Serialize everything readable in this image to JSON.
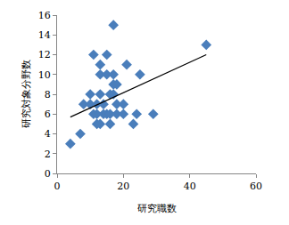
{
  "chart_data": {
    "type": "scatter",
    "x_label": "研究職数",
    "y_label": "研究対象分野数",
    "series": [
      {
        "type": "scatter",
        "color": "#4a7ebb",
        "marker": "diamond",
        "x": [
          4,
          7,
          8,
          10,
          10,
          11,
          11,
          12,
          12,
          12,
          13,
          13,
          13,
          13,
          14,
          14,
          15,
          15,
          15,
          16,
          16,
          16,
          17,
          17,
          17,
          17,
          18,
          18,
          18,
          20,
          20,
          21,
          23,
          24,
          25,
          29,
          45
        ],
        "values": [
          3,
          4,
          7,
          8,
          7,
          12,
          6,
          6,
          5,
          7,
          5,
          11,
          10,
          8,
          6,
          7,
          6,
          10,
          12,
          8,
          5,
          6,
          15,
          9,
          8,
          10,
          9,
          6,
          7,
          6,
          7,
          11,
          5,
          6,
          10,
          6,
          13
        ]
      },
      {
        "type": "line",
        "color": "#000000",
        "line_style": "solid",
        "x": [
          4,
          45
        ],
        "values": [
          5.7,
          12
        ]
      }
    ],
    "xlim": [
      0,
      60
    ],
    "xticks": [
      0,
      20,
      40,
      60
    ],
    "ylim": [
      0,
      16
    ],
    "yticks": [
      0,
      2,
      4,
      6,
      8,
      10,
      12,
      14,
      16
    ],
    "grid": false
  }
}
